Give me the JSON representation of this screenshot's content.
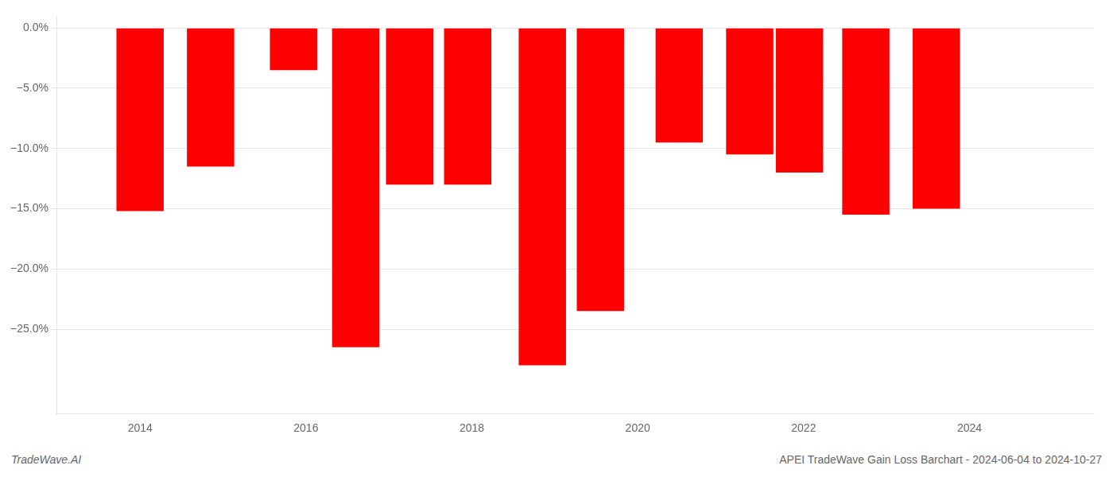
{
  "chart_data": {
    "type": "bar",
    "x": [
      2014.0,
      2014.85,
      2015.85,
      2016.6,
      2017.25,
      2017.95,
      2018.85,
      2019.55,
      2020.5,
      2021.35,
      2021.95,
      2022.75,
      2023.6
    ],
    "values": [
      -15.2,
      -11.5,
      -3.5,
      -26.5,
      -13.0,
      -13.0,
      -28.0,
      -23.5,
      -9.5,
      -10.5,
      -12.0,
      -15.5,
      -15.0
    ],
    "color": "#ff0000",
    "xlim": [
      2013.0,
      2025.5
    ],
    "xticks": [
      2014,
      2016,
      2018,
      2020,
      2022,
      2024
    ],
    "ylim": [
      -32,
      1.0
    ],
    "yticks": [
      {
        "value": 0.0,
        "label": "0.0%"
      },
      {
        "value": -5.0,
        "label": "−5.0%"
      },
      {
        "value": -10.0,
        "label": "−10.0%"
      },
      {
        "value": -15.0,
        "label": "−15.0%"
      },
      {
        "value": -20.0,
        "label": "−20.0%"
      },
      {
        "value": -25.0,
        "label": "−25.0%"
      }
    ],
    "grid": true,
    "annotations": [
      "TradeWave.AI",
      "APEI TradeWave Gain Loss Barchart - 2024-06-04 to 2024-10-27"
    ]
  }
}
